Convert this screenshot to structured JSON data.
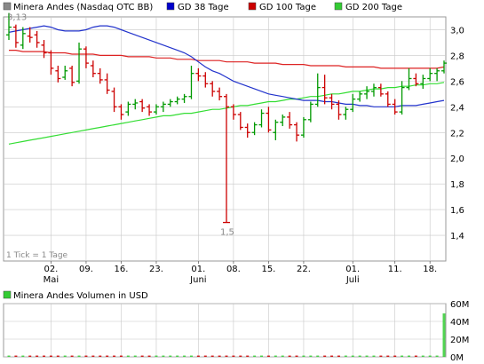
{
  "chart_data": [
    {
      "type": "ohlc",
      "legend": {
        "entries": [
          {
            "label": "Minera Andes (Nasdaq OTC BB)",
            "color": "#888888"
          },
          {
            "label": "GD 38 Tage",
            "color": "#0000cc"
          },
          {
            "label": "GD 100 Tage",
            "color": "#cc0000"
          },
          {
            "label": "GD 200 Tage",
            "color": "#33cc33"
          }
        ]
      },
      "ylim": [
        1.2,
        3.1
      ],
      "yticks": [
        "3,0",
        "2,8",
        "2,6",
        "2,4",
        "2,2",
        "2,0",
        "1,8",
        "1,6",
        "1,4"
      ],
      "ytick_values": [
        3.0,
        2.8,
        2.6,
        2.4,
        2.2,
        2.0,
        1.8,
        1.6,
        1.4
      ],
      "xticks": [
        {
          "label": "02.",
          "month": "Mai",
          "idx": 6
        },
        {
          "label": "09.",
          "idx": 11
        },
        {
          "label": "16.",
          "idx": 16
        },
        {
          "label": "23.",
          "idx": 21
        },
        {
          "label": "01.",
          "month": "Juni",
          "idx": 27
        },
        {
          "label": "08.",
          "idx": 32
        },
        {
          "label": "15.",
          "idx": 37
        },
        {
          "label": "22.",
          "idx": 42
        },
        {
          "label": "01.",
          "month": "Juli",
          "idx": 49
        },
        {
          "label": "11.",
          "idx": 55
        },
        {
          "label": "18.",
          "idx": 60
        }
      ],
      "annotations": {
        "high": "3,13",
        "low": "1,5",
        "note": "1 Tick = 1 Tage"
      },
      "colors": {
        "up": "#009900",
        "down": "#cc0000",
        "ma38": "#2233cc",
        "ma100": "#dd2222",
        "ma200": "#33dd33",
        "grid": "#c8c8c8"
      },
      "ohlc": [
        [
          2.96,
          3.13,
          2.92,
          3.02
        ],
        [
          3.02,
          3.04,
          2.86,
          2.9
        ],
        [
          2.88,
          3.02,
          2.85,
          2.97
        ],
        [
          2.95,
          3.02,
          2.9,
          2.94
        ],
        [
          2.96,
          2.99,
          2.86,
          2.9
        ],
        [
          2.88,
          2.92,
          2.78,
          2.82
        ],
        [
          2.82,
          2.84,
          2.65,
          2.7
        ],
        [
          2.68,
          2.72,
          2.59,
          2.62
        ],
        [
          2.63,
          2.72,
          2.61,
          2.68
        ],
        [
          2.7,
          2.72,
          2.56,
          2.59
        ],
        [
          2.6,
          2.9,
          2.58,
          2.85
        ],
        [
          2.85,
          2.87,
          2.7,
          2.74
        ],
        [
          2.72,
          2.76,
          2.63,
          2.66
        ],
        [
          2.66,
          2.7,
          2.58,
          2.61
        ],
        [
          2.61,
          2.66,
          2.5,
          2.53
        ],
        [
          2.52,
          2.55,
          2.36,
          2.4
        ],
        [
          2.4,
          2.42,
          2.3,
          2.34
        ],
        [
          2.36,
          2.44,
          2.33,
          2.42
        ],
        [
          2.42,
          2.46,
          2.38,
          2.43
        ],
        [
          2.44,
          2.46,
          2.36,
          2.39
        ],
        [
          2.4,
          2.42,
          2.33,
          2.36
        ],
        [
          2.36,
          2.42,
          2.34,
          2.4
        ],
        [
          2.4,
          2.44,
          2.36,
          2.42
        ],
        [
          2.42,
          2.46,
          2.4,
          2.44
        ],
        [
          2.44,
          2.48,
          2.42,
          2.46
        ],
        [
          2.46,
          2.5,
          2.43,
          2.48
        ],
        [
          2.48,
          2.72,
          2.46,
          2.66
        ],
        [
          2.66,
          2.7,
          2.6,
          2.64
        ],
        [
          2.64,
          2.67,
          2.55,
          2.58
        ],
        [
          2.58,
          2.6,
          2.48,
          2.52
        ],
        [
          2.52,
          2.55,
          2.45,
          2.48
        ],
        [
          2.48,
          2.5,
          1.5,
          2.4
        ],
        [
          2.4,
          2.42,
          2.3,
          2.34
        ],
        [
          2.34,
          2.36,
          2.22,
          2.24
        ],
        [
          2.24,
          2.27,
          2.16,
          2.2
        ],
        [
          2.2,
          2.28,
          2.18,
          2.26
        ],
        [
          2.26,
          2.38,
          2.24,
          2.35
        ],
        [
          2.35,
          2.4,
          2.2,
          2.22
        ],
        [
          2.2,
          2.3,
          2.14,
          2.28
        ],
        [
          2.28,
          2.34,
          2.25,
          2.32
        ],
        [
          2.32,
          2.36,
          2.23,
          2.26
        ],
        [
          2.26,
          2.28,
          2.13,
          2.18
        ],
        [
          2.18,
          2.32,
          2.16,
          2.3
        ],
        [
          2.3,
          2.44,
          2.28,
          2.42
        ],
        [
          2.42,
          2.66,
          2.4,
          2.55
        ],
        [
          2.55,
          2.65,
          2.42,
          2.47
        ],
        [
          2.47,
          2.5,
          2.38,
          2.42
        ],
        [
          2.42,
          2.45,
          2.3,
          2.34
        ],
        [
          2.34,
          2.4,
          2.3,
          2.38
        ],
        [
          2.38,
          2.5,
          2.36,
          2.46
        ],
        [
          2.46,
          2.52,
          2.44,
          2.5
        ],
        [
          2.5,
          2.56,
          2.46,
          2.52
        ],
        [
          2.52,
          2.58,
          2.48,
          2.55
        ],
        [
          2.55,
          2.58,
          2.48,
          2.5
        ],
        [
          2.5,
          2.52,
          2.4,
          2.42
        ],
        [
          2.42,
          2.46,
          2.34,
          2.36
        ],
        [
          2.36,
          2.6,
          2.34,
          2.55
        ],
        [
          2.55,
          2.7,
          2.53,
          2.62
        ],
        [
          2.62,
          2.66,
          2.56,
          2.58
        ],
        [
          2.58,
          2.65,
          2.54,
          2.62
        ],
        [
          2.62,
          2.7,
          2.6,
          2.66
        ],
        [
          2.66,
          2.7,
          2.6,
          2.68
        ],
        [
          2.68,
          2.76,
          2.66,
          2.74
        ]
      ],
      "ma38": [
        2.98,
        2.99,
        3.0,
        3.01,
        3.02,
        3.03,
        3.02,
        3.0,
        2.99,
        2.99,
        2.99,
        3.0,
        3.02,
        3.03,
        3.03,
        3.02,
        3.0,
        2.98,
        2.96,
        2.94,
        2.92,
        2.9,
        2.88,
        2.86,
        2.84,
        2.82,
        2.79,
        2.75,
        2.71,
        2.68,
        2.66,
        2.63,
        2.6,
        2.58,
        2.56,
        2.54,
        2.52,
        2.5,
        2.49,
        2.48,
        2.47,
        2.46,
        2.45,
        2.45,
        2.45,
        2.44,
        2.44,
        2.43,
        2.42,
        2.42,
        2.41,
        2.41,
        2.4,
        2.4,
        2.4,
        2.4,
        2.41,
        2.41,
        2.41,
        2.42,
        2.43,
        2.44,
        2.45
      ],
      "ma100": [
        2.84,
        2.84,
        2.83,
        2.83,
        2.83,
        2.83,
        2.82,
        2.82,
        2.82,
        2.81,
        2.81,
        2.81,
        2.81,
        2.8,
        2.8,
        2.8,
        2.8,
        2.79,
        2.79,
        2.79,
        2.79,
        2.78,
        2.78,
        2.78,
        2.77,
        2.77,
        2.77,
        2.76,
        2.76,
        2.76,
        2.76,
        2.75,
        2.75,
        2.75,
        2.75,
        2.74,
        2.74,
        2.74,
        2.74,
        2.73,
        2.73,
        2.73,
        2.73,
        2.72,
        2.72,
        2.72,
        2.72,
        2.72,
        2.71,
        2.71,
        2.71,
        2.71,
        2.71,
        2.7,
        2.7,
        2.7,
        2.7,
        2.7,
        2.7,
        2.7,
        2.7,
        2.7,
        2.71
      ],
      "ma200": [
        2.11,
        2.12,
        2.13,
        2.14,
        2.15,
        2.16,
        2.17,
        2.18,
        2.19,
        2.2,
        2.21,
        2.22,
        2.23,
        2.24,
        2.25,
        2.26,
        2.27,
        2.28,
        2.29,
        2.3,
        2.31,
        2.32,
        2.33,
        2.33,
        2.34,
        2.35,
        2.35,
        2.36,
        2.37,
        2.38,
        2.38,
        2.39,
        2.4,
        2.41,
        2.41,
        2.42,
        2.43,
        2.44,
        2.44,
        2.45,
        2.46,
        2.46,
        2.47,
        2.48,
        2.48,
        2.49,
        2.5,
        2.5,
        2.51,
        2.52,
        2.52,
        2.53,
        2.54,
        2.54,
        2.55,
        2.55,
        2.56,
        2.56,
        2.57,
        2.57,
        2.58,
        2.58,
        2.59
      ]
    },
    {
      "type": "bar",
      "legend": {
        "entries": [
          {
            "label": "Minera Andes Volumen in USD",
            "color": "#33cc33"
          }
        ]
      },
      "ylim": [
        0,
        60
      ],
      "yticks": [
        "60M",
        "40M",
        "20M",
        "0M"
      ],
      "ytick_values": [
        60,
        40,
        20,
        0
      ],
      "unit": "M",
      "values": [
        0.3,
        0.5,
        0.8,
        0.4,
        0.2,
        0.6,
        0.7,
        0.3,
        0.5,
        0.4,
        0.9,
        0.6,
        0.3,
        0.4,
        0.5,
        0.8,
        0.4,
        0.3,
        0.6,
        0.5,
        0.2,
        0.4,
        0.7,
        0.3,
        0.5,
        0.4,
        0.9,
        0.6,
        0.3,
        0.5,
        0.4,
        1.2,
        0.6,
        0.5,
        0.4,
        0.3,
        0.6,
        0.5,
        0.4,
        0.3,
        0.5,
        0.6,
        0.4,
        0.5,
        0.8,
        0.7,
        0.4,
        0.3,
        0.5,
        0.6,
        0.4,
        0.5,
        0.3,
        0.4,
        0.6,
        0.5,
        0.7,
        0.6,
        0.4,
        0.5,
        0.6,
        0.8,
        49.0
      ],
      "colors": [
        "#33cc33",
        "#cc0000",
        "#33cc33",
        "#cc0000",
        "#cc0000",
        "#cc0000",
        "#cc0000",
        "#cc0000",
        "#33cc33",
        "#cc0000",
        "#33cc33",
        "#cc0000",
        "#cc0000",
        "#cc0000",
        "#cc0000",
        "#cc0000",
        "#cc0000",
        "#33cc33",
        "#33cc33",
        "#cc0000",
        "#cc0000",
        "#33cc33",
        "#33cc33",
        "#33cc33",
        "#33cc33",
        "#33cc33",
        "#33cc33",
        "#cc0000",
        "#cc0000",
        "#cc0000",
        "#cc0000",
        "#cc0000",
        "#cc0000",
        "#cc0000",
        "#cc0000",
        "#33cc33",
        "#33cc33",
        "#cc0000",
        "#33cc33",
        "#33cc33",
        "#cc0000",
        "#cc0000",
        "#33cc33",
        "#33cc33",
        "#33cc33",
        "#cc0000",
        "#cc0000",
        "#cc0000",
        "#33cc33",
        "#33cc33",
        "#33cc33",
        "#33cc33",
        "#33cc33",
        "#cc0000",
        "#cc0000",
        "#cc0000",
        "#33cc33",
        "#33cc33",
        "#cc0000",
        "#33cc33",
        "#33cc33",
        "#33cc33",
        "#33cc33"
      ]
    }
  ]
}
